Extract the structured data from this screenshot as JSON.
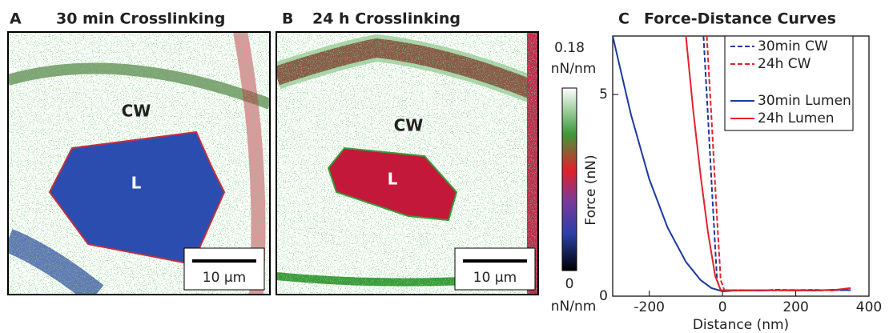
{
  "panels": [
    {
      "letter": "A",
      "title": "30 min Crosslinking",
      "labels": [
        "CW",
        "L"
      ],
      "scale_bar": "10 µm"
    },
    {
      "letter": "B",
      "title": "24 h Crosslinking",
      "labels": [
        "CW",
        "L"
      ],
      "scale_bar": "10 µm"
    }
  ],
  "colorbar": {
    "lim": [
      0,
      0.18
    ],
    "ticks": [
      0,
      0.18
    ],
    "unit": "nN/nm"
  },
  "chart_data": {
    "type": "line",
    "letter": "C",
    "title": "Force-Distance Curves",
    "x_label": "Distance (nm)",
    "y_label": "Force (nN)",
    "xlim": [
      -300,
      400
    ],
    "xticks": [
      -200,
      0,
      200,
      400
    ],
    "ylim": [
      0,
      6.45
    ],
    "yticks": [
      0,
      5
    ],
    "series": [
      {
        "name": "30min CW",
        "color": "#1c3a9e",
        "dashed": true,
        "x": [
          -52,
          -40,
          -28,
          -15,
          -5,
          50,
          100,
          150,
          200,
          250,
          300,
          350
        ],
        "values": [
          6.45,
          4.5,
          2.5,
          0.4,
          0.15,
          0.15,
          0.14,
          0.16,
          0.15,
          0.14,
          0.15,
          0.15
        ]
      },
      {
        "name": "24h CW",
        "color": "#e3222b",
        "dashed": true,
        "x": [
          -43,
          -30,
          -18,
          -5,
          5,
          50,
          100,
          150,
          200,
          250,
          300,
          350
        ],
        "values": [
          6.45,
          4.4,
          2.4,
          0.4,
          0.15,
          0.14,
          0.15,
          0.14,
          0.15,
          0.16,
          0.14,
          0.2
        ]
      },
      {
        "name": "30min Lumen",
        "color": "#1c3a9e",
        "dashed": false,
        "x": [
          -300,
          -250,
          -200,
          -150,
          -100,
          -60,
          -30,
          0,
          50,
          100,
          150,
          200,
          250,
          300,
          350
        ],
        "values": [
          6.45,
          4.5,
          2.9,
          1.7,
          0.85,
          0.4,
          0.2,
          0.12,
          0.15,
          0.14,
          0.15,
          0.15,
          0.14,
          0.16,
          0.15
        ]
      },
      {
        "name": "24h Lumen",
        "color": "#e3222b",
        "dashed": false,
        "x": [
          -100,
          -80,
          -60,
          -40,
          -20,
          -5,
          50,
          100,
          150,
          200,
          250,
          300,
          350
        ],
        "values": [
          6.45,
          4.6,
          3.0,
          1.6,
          0.5,
          0.15,
          0.14,
          0.15,
          0.15,
          0.14,
          0.15,
          0.15,
          0.2
        ]
      }
    ]
  }
}
